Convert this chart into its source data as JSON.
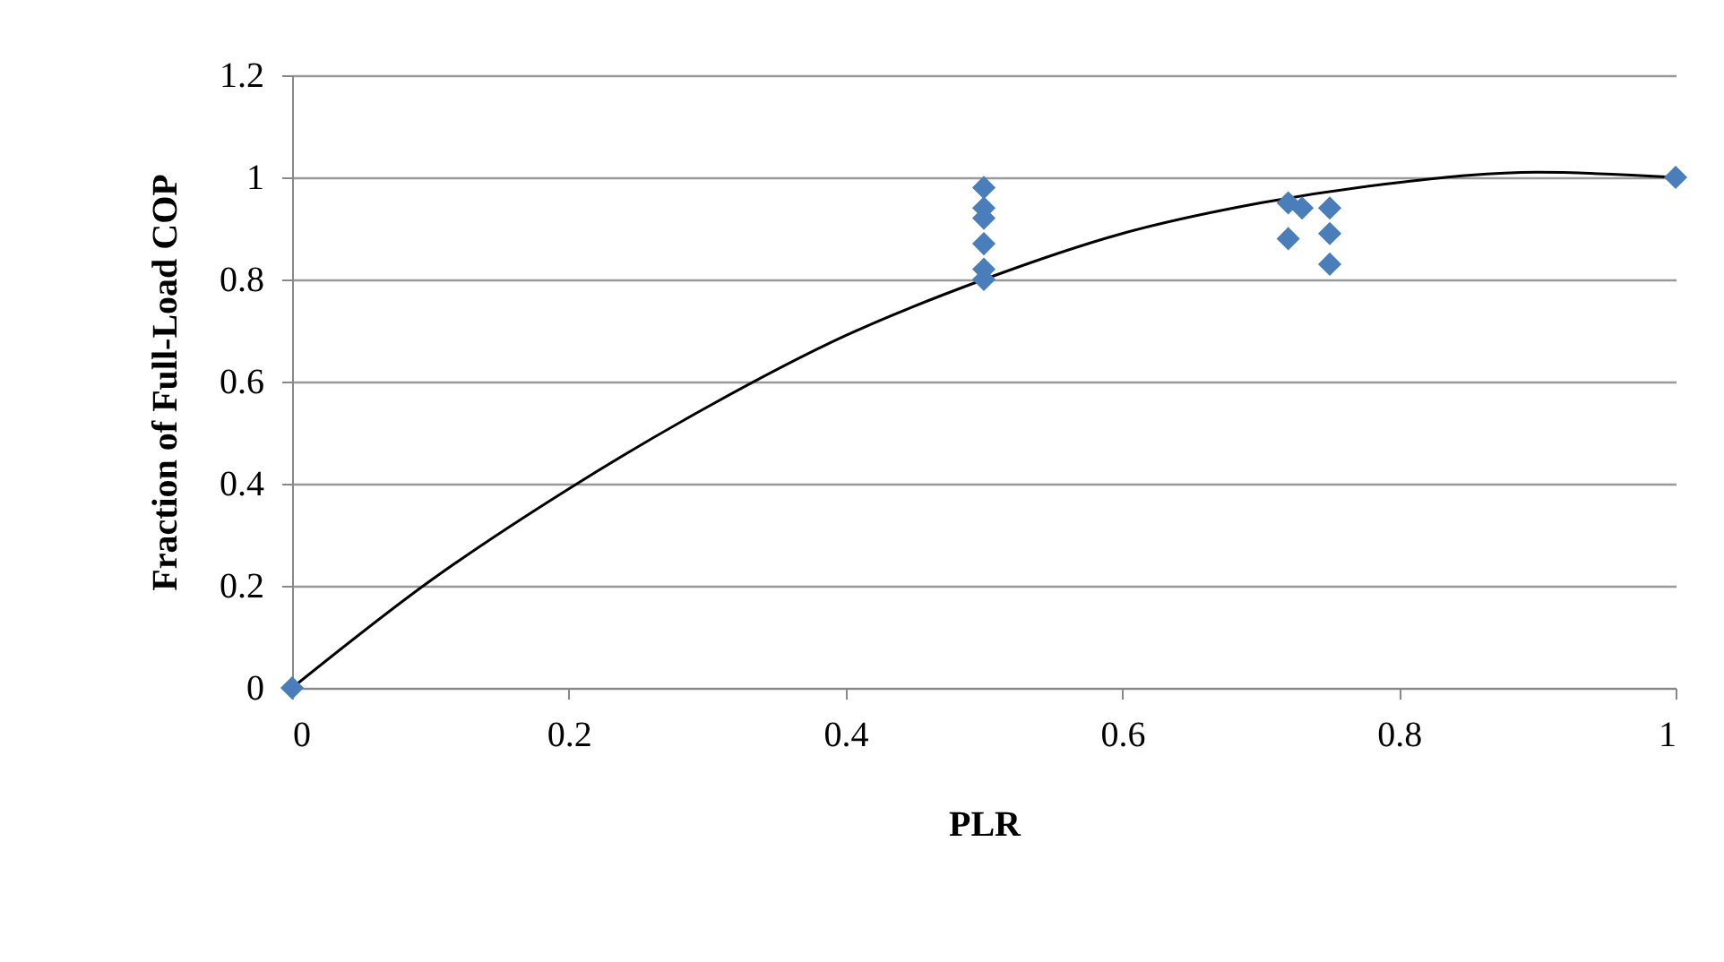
{
  "chart_data": {
    "type": "scatter",
    "xlabel": "PLR",
    "ylabel": "Fraction of Full-Load COP",
    "xlim": [
      0,
      1
    ],
    "xticks": [
      0,
      0.2,
      0.4,
      0.6,
      0.8,
      1
    ],
    "ylim": [
      0,
      1.2
    ],
    "yticks": [
      0,
      0.2,
      0.4,
      0.6,
      0.8,
      1,
      1.2
    ],
    "grid": "y",
    "series": [
      {
        "marker": "diamond",
        "color": "#4a7ebb",
        "x": [
          0,
          0.5,
          0.5,
          0.5,
          0.5,
          0.5,
          0.5,
          0.72,
          0.72,
          0.73,
          0.75,
          0.75,
          0.75,
          1
        ],
        "values": [
          0,
          0.98,
          0.94,
          0.92,
          0.87,
          0.82,
          0.8,
          0.95,
          0.88,
          0.94,
          0.94,
          0.89,
          0.83,
          1
        ]
      },
      {
        "type": "line",
        "color": "#000000",
        "x": [
          0,
          0.1,
          0.2,
          0.3,
          0.4,
          0.5,
          0.6,
          0.7,
          0.8,
          0.9,
          1
        ],
        "values": [
          0,
          0.21,
          0.39,
          0.55,
          0.69,
          0.8,
          0.89,
          0.95,
          0.99,
          1.01,
          1
        ]
      }
    ]
  }
}
